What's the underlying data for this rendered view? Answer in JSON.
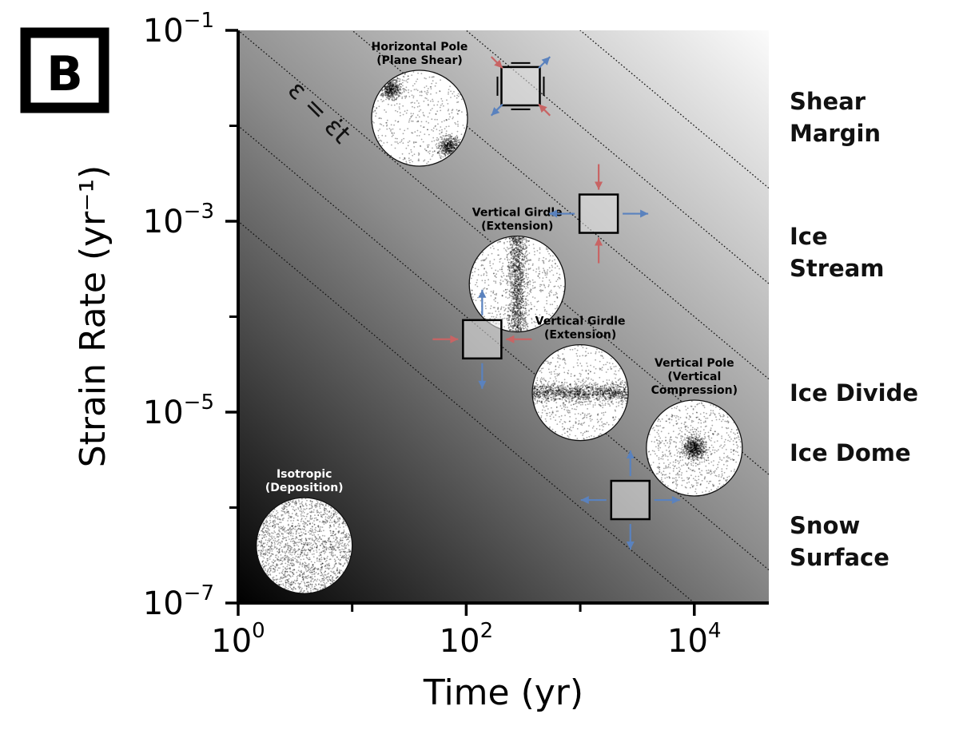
{
  "panel_label": "B",
  "chart_data": {
    "type": "scatter",
    "xlabel": "Time (yr)",
    "ylabel": "Strain Rate (yr⁻¹)",
    "xscale": "log",
    "yscale": "log",
    "xlim": [
      1,
      45000
    ],
    "ylim": [
      1e-07,
      0.1
    ],
    "x_ticks": [
      {
        "value": 1,
        "base": "10",
        "exp": "0"
      },
      {
        "value": 100,
        "base": "10",
        "exp": "2"
      },
      {
        "value": 10000,
        "base": "10",
        "exp": "4"
      }
    ],
    "x_minor_ticks": [
      10,
      1000
    ],
    "y_ticks": [
      {
        "value": 0.1,
        "base": "10",
        "exp": "−1"
      },
      {
        "value": 0.001,
        "base": "10",
        "exp": "−3"
      },
      {
        "value": 1e-05,
        "base": "10",
        "exp": "−5"
      },
      {
        "value": 1e-07,
        "base": "10",
        "exp": "−7"
      }
    ],
    "y_minor_ticks": [
      0.01,
      0.0001,
      1e-06
    ],
    "background": "grayscale gradient increasing with strain = strain rate × time",
    "contour_strains": [
      0.001,
      0.01,
      0.1,
      1,
      10,
      100
    ],
    "contour_annotation": "ε = ε̇t",
    "fabric_circles": [
      {
        "id": "horizontal-pole",
        "title1": "Horizontal Pole",
        "title2": "(Plane Shear)",
        "x": 39,
        "y": 0.012,
        "pattern": "two-clusters",
        "title_color": "#000000"
      },
      {
        "id": "vertical-girdle-1",
        "title1": "Vertical Girdle",
        "title2": "(Extension)",
        "x": 280,
        "y": 0.00022,
        "pattern": "vertical-band",
        "title_color": "#000000"
      },
      {
        "id": "vertical-girdle-2",
        "title1": "Vertical Girdle",
        "title2": "(Extension)",
        "x": 1000,
        "y": 1.6e-05,
        "pattern": "horizontal-band",
        "title_color": "#000000"
      },
      {
        "id": "vertical-pole",
        "title1": "Vertical Pole",
        "title2": "(Vertical",
        "title3": "Compression)",
        "x": 10000,
        "y": 4.2e-06,
        "pattern": "center-point",
        "title_color": "#000000"
      },
      {
        "id": "isotropic",
        "title1": "Isotropic",
        "title2": "(Deposition)",
        "x": 3.8,
        "y": 4e-07,
        "pattern": "uniform",
        "title_color": "#ffffff"
      }
    ],
    "strain_boxes": [
      {
        "id": "shear-box",
        "x": 300,
        "y": 0.026,
        "arrows": "shear"
      },
      {
        "id": "extension-box-1",
        "x": 1450,
        "y": 0.0012,
        "arrows": "extension-horizontal"
      },
      {
        "id": "compression-box",
        "x": 138,
        "y": 5.8e-05,
        "arrows": "extension-vertical"
      },
      {
        "id": "extension-box-2",
        "x": 2750,
        "y": 1.2e-06,
        "arrows": "biaxial"
      }
    ],
    "arrow_colors": {
      "compression": "#c86464",
      "extension": "#5a82be"
    }
  },
  "side_labels": [
    {
      "id": "shear-margin",
      "lines": [
        "Shear",
        "Margin"
      ]
    },
    {
      "id": "ice-stream",
      "lines": [
        "Ice",
        "Stream"
      ]
    },
    {
      "id": "ice-divide",
      "lines": [
        "Ice Divide"
      ]
    },
    {
      "id": "ice-dome",
      "lines": [
        "Ice Dome"
      ]
    },
    {
      "id": "snow-surface",
      "lines": [
        "Snow",
        "Surface"
      ]
    }
  ]
}
